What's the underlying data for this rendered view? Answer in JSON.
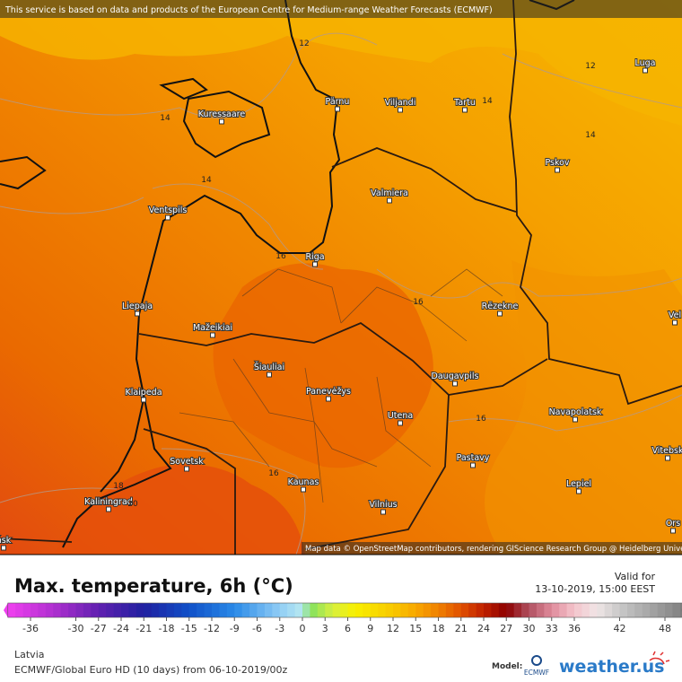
{
  "notice": "This service is based on data and products of the European Centre for Medium-range Weather Forecasts (ECMWF)",
  "attribution": "Map data © OpenStreetMap contributors, rendering GIScience Research Group @ Heidelberg University",
  "cities": [
    "Kuressaare",
    "Pärnu",
    "Viljandi",
    "Tartu",
    "Luga",
    "Pskov",
    "Valmiera",
    "Ventspils",
    "Riga",
    "Liepaja",
    "Rēzekne",
    "Mažeikiai",
    "Šiauliai",
    "Daugavpils",
    "Klaipeda",
    "Panevėžys",
    "Navapolatsk",
    "Utena",
    "Vitebsk",
    "Sovetsk",
    "Pastavy",
    "Kaunas",
    "Lepiel",
    "Vilnius",
    "Kaliningrad",
    "Vel",
    "Ors",
    "ńsk"
  ],
  "contour_labels": [
    "12",
    "12",
    "14",
    "14",
    "14",
    "14",
    "16",
    "16",
    "16",
    "16",
    "18",
    "20"
  ],
  "title": "Max. temperature, 6h (°C)",
  "valid_label": "Valid for",
  "valid_time": "13-10-2019, 15:00 EEST",
  "colorbar_ticks": [
    -36,
    -30,
    -27,
    -24,
    -21,
    -18,
    -15,
    -12,
    -9,
    -6,
    -3,
    0,
    3,
    6,
    9,
    12,
    15,
    18,
    21,
    24,
    27,
    30,
    33,
    36,
    42,
    48
  ],
  "region": "Latvia",
  "model_run": "ECMWF/Global Euro HD (10 days) from 06-10-2019/00z",
  "model_label": "Model:",
  "model_logo": "ECMWF",
  "brand": "weather.us"
}
